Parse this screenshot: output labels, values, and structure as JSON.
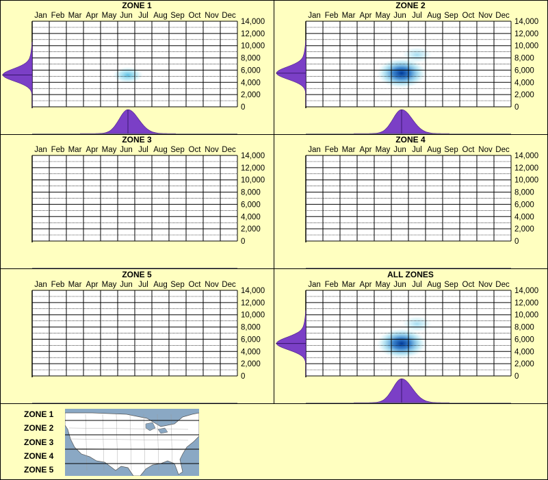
{
  "chart_data": [
    {
      "type": "heatmap",
      "title": "ZONE 1",
      "x_categories": [
        "Jan",
        "Feb",
        "Mar",
        "Apr",
        "May",
        "Jun",
        "Jul",
        "Aug",
        "Sep",
        "Oct",
        "Nov",
        "Dec"
      ],
      "y_ticks": [
        "0",
        "2,000",
        "4,000",
        "6,000",
        "8,000",
        "10,000",
        "12,000",
        "14,000"
      ],
      "ylim": [
        0,
        14000
      ],
      "density_peaks": [
        {
          "month": 5.6,
          "elevation": 5200,
          "intensity": 0.45
        }
      ],
      "has_data": true
    },
    {
      "type": "heatmap",
      "title": "ZONE 2",
      "x_categories": [
        "Jan",
        "Feb",
        "Mar",
        "Apr",
        "May",
        "Jun",
        "Jul",
        "Aug",
        "Sep",
        "Oct",
        "Nov",
        "Dec"
      ],
      "y_ticks": [
        "0",
        "2,000",
        "4,000",
        "6,000",
        "8,000",
        "10,000",
        "12,000",
        "14,000"
      ],
      "ylim": [
        0,
        14000
      ],
      "density_peaks": [
        {
          "month": 5.6,
          "elevation": 5500,
          "intensity": 1.0
        },
        {
          "month": 6.5,
          "elevation": 8500,
          "intensity": 0.25
        }
      ],
      "has_data": true
    },
    {
      "type": "heatmap",
      "title": "ZONE 3",
      "x_categories": [
        "Jan",
        "Feb",
        "Mar",
        "Apr",
        "May",
        "Jun",
        "Jul",
        "Aug",
        "Sep",
        "Oct",
        "Nov",
        "Dec"
      ],
      "y_ticks": [
        "0",
        "2,000",
        "4,000",
        "6,000",
        "8,000",
        "10,000",
        "12,000",
        "14,000"
      ],
      "ylim": [
        0,
        14000
      ],
      "density_peaks": [],
      "has_data": false
    },
    {
      "type": "heatmap",
      "title": "ZONE 4",
      "x_categories": [
        "Jan",
        "Feb",
        "Mar",
        "Apr",
        "May",
        "Jun",
        "Jul",
        "Aug",
        "Sep",
        "Oct",
        "Nov",
        "Dec"
      ],
      "y_ticks": [
        "0",
        "2,000",
        "4,000",
        "6,000",
        "8,000",
        "10,000",
        "12,000",
        "14,000"
      ],
      "ylim": [
        0,
        14000
      ],
      "density_peaks": [],
      "has_data": false
    },
    {
      "type": "heatmap",
      "title": "ZONE 5",
      "x_categories": [
        "Jan",
        "Feb",
        "Mar",
        "Apr",
        "May",
        "Jun",
        "Jul",
        "Aug",
        "Sep",
        "Oct",
        "Nov",
        "Dec"
      ],
      "y_ticks": [
        "0",
        "2,000",
        "4,000",
        "6,000",
        "8,000",
        "10,000",
        "12,000",
        "14,000"
      ],
      "ylim": [
        0,
        14000
      ],
      "density_peaks": [],
      "has_data": false
    },
    {
      "type": "heatmap",
      "title": "ALL ZONES",
      "x_categories": [
        "Jan",
        "Feb",
        "Mar",
        "Apr",
        "May",
        "Jun",
        "Jul",
        "Aug",
        "Sep",
        "Oct",
        "Nov",
        "Dec"
      ],
      "y_ticks": [
        "0",
        "2,000",
        "4,000",
        "6,000",
        "8,000",
        "10,000",
        "12,000",
        "14,000"
      ],
      "ylim": [
        0,
        14000
      ],
      "density_peaks": [
        {
          "month": 5.6,
          "elevation": 5300,
          "intensity": 1.0
        },
        {
          "month": 6.5,
          "elevation": 8500,
          "intensity": 0.25
        }
      ],
      "has_data": true
    }
  ],
  "zone_legend": {
    "labels": [
      "ZONE 1",
      "ZONE 2",
      "ZONE 3",
      "ZONE 4",
      "ZONE 5"
    ]
  },
  "colors": {
    "background": "#ffffc0",
    "density": "#7b3fc6",
    "heat": "#1a6fc4",
    "map_water": "#8aa8c4",
    "map_land": "#ffffff"
  }
}
